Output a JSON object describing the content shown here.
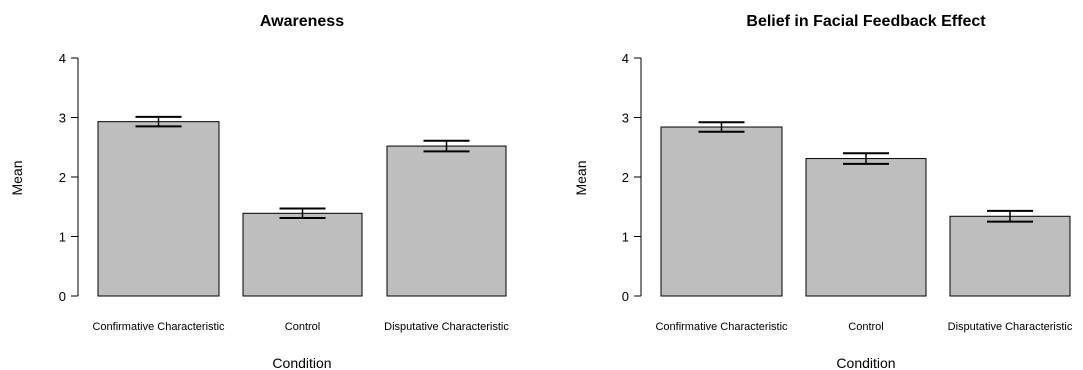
{
  "chart_data": [
    {
      "type": "bar",
      "title": "Awareness",
      "xlabel": "Condition",
      "ylabel": "Mean",
      "ylim": [
        0,
        4
      ],
      "yticks": [
        "0",
        "1",
        "2",
        "3",
        "4"
      ],
      "categories": [
        "Confirmative Characteristic",
        "Control",
        "Disputative Characteristic"
      ],
      "values": [
        2.93,
        1.39,
        2.52
      ],
      "error_low": [
        2.85,
        1.31,
        2.43
      ],
      "error_high": [
        3.01,
        1.47,
        2.61
      ],
      "bar_color": "#bebebe",
      "grid": false
    },
    {
      "type": "bar",
      "title": "Belief in Facial Feedback Effect",
      "xlabel": "Condition",
      "ylabel": "Mean",
      "ylim": [
        0,
        4
      ],
      "yticks": [
        "0",
        "1",
        "2",
        "3",
        "4"
      ],
      "categories": [
        "Confirmative Characteristic",
        "Control",
        "Disputative Characteristic"
      ],
      "values": [
        2.84,
        2.31,
        1.34
      ],
      "error_low": [
        2.76,
        2.22,
        1.25
      ],
      "error_high": [
        2.92,
        2.4,
        1.43
      ],
      "bar_color": "#bebebe",
      "grid": false
    }
  ]
}
